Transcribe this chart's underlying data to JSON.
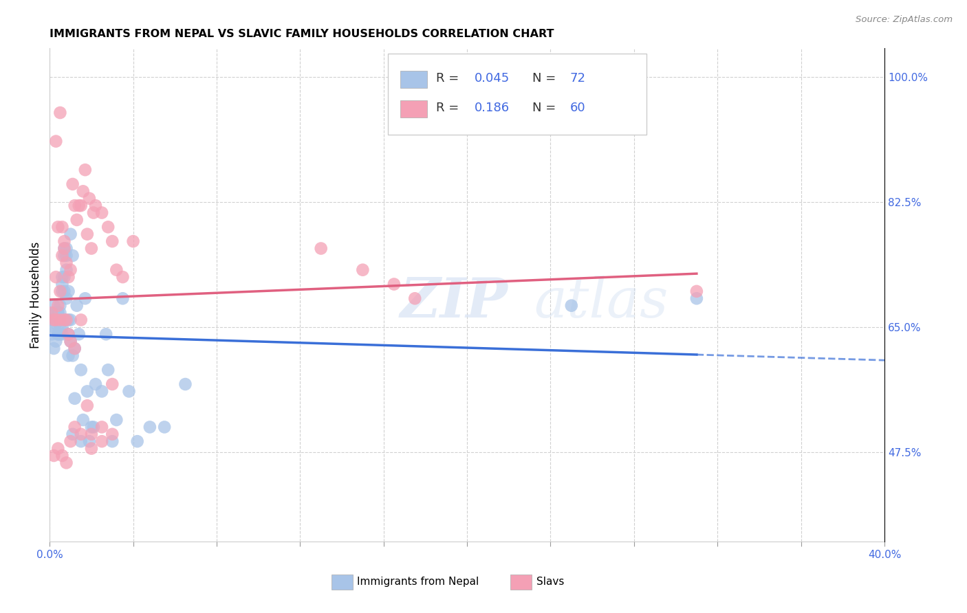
{
  "title": "IMMIGRANTS FROM NEPAL VS SLAVIC FAMILY HOUSEHOLDS CORRELATION CHART",
  "source": "Source: ZipAtlas.com",
  "ylabel": "Family Households",
  "xlim": [
    0.0,
    0.4
  ],
  "ylim": [
    0.35,
    1.04
  ],
  "xticks": [
    0.0,
    0.04,
    0.08,
    0.12,
    0.16,
    0.2,
    0.24,
    0.28,
    0.32,
    0.36,
    0.4
  ],
  "xtick_edge_labels": {
    "0.0": "0.0%",
    "0.40": "40.0%"
  },
  "yticks_right": [
    1.0,
    0.825,
    0.65,
    0.475
  ],
  "ytick_labels_right": [
    "100.0%",
    "82.5%",
    "65.0%",
    "47.5%"
  ],
  "nepal_R": 0.045,
  "nepal_N": 72,
  "slavs_R": 0.186,
  "slavs_N": 60,
  "nepal_color": "#a8c4e8",
  "slavs_color": "#f4a0b5",
  "nepal_line_color": "#3a6fd8",
  "slavs_line_color": "#e06080",
  "watermark_text": "ZIP",
  "watermark_text2": "atlas",
  "nepal_x": [
    0.001,
    0.001,
    0.002,
    0.002,
    0.002,
    0.003,
    0.003,
    0.003,
    0.003,
    0.004,
    0.004,
    0.004,
    0.004,
    0.005,
    0.005,
    0.005,
    0.005,
    0.005,
    0.006,
    0.006,
    0.006,
    0.006,
    0.007,
    0.007,
    0.007,
    0.007,
    0.008,
    0.008,
    0.008,
    0.009,
    0.009,
    0.009,
    0.01,
    0.01,
    0.011,
    0.011,
    0.012,
    0.012,
    0.013,
    0.014,
    0.015,
    0.015,
    0.016,
    0.017,
    0.018,
    0.019,
    0.02,
    0.021,
    0.022,
    0.025,
    0.027,
    0.028,
    0.03,
    0.032,
    0.035,
    0.038,
    0.042,
    0.048,
    0.055,
    0.065,
    0.002,
    0.003,
    0.004,
    0.005,
    0.006,
    0.007,
    0.008,
    0.009,
    0.01,
    0.011,
    0.25,
    0.31
  ],
  "nepal_y": [
    0.66,
    0.64,
    0.67,
    0.65,
    0.68,
    0.66,
    0.67,
    0.655,
    0.66,
    0.67,
    0.665,
    0.64,
    0.67,
    0.66,
    0.65,
    0.68,
    0.66,
    0.67,
    0.7,
    0.72,
    0.65,
    0.71,
    0.7,
    0.72,
    0.75,
    0.76,
    0.73,
    0.75,
    0.76,
    0.64,
    0.61,
    0.66,
    0.66,
    0.78,
    0.5,
    0.61,
    0.62,
    0.55,
    0.68,
    0.64,
    0.59,
    0.49,
    0.52,
    0.69,
    0.56,
    0.49,
    0.51,
    0.51,
    0.57,
    0.56,
    0.64,
    0.59,
    0.49,
    0.52,
    0.69,
    0.56,
    0.49,
    0.51,
    0.51,
    0.57,
    0.62,
    0.63,
    0.64,
    0.64,
    0.64,
    0.66,
    0.69,
    0.7,
    0.63,
    0.75,
    0.68,
    0.69
  ],
  "slavs_x": [
    0.001,
    0.002,
    0.003,
    0.004,
    0.005,
    0.006,
    0.007,
    0.008,
    0.009,
    0.01,
    0.011,
    0.012,
    0.013,
    0.014,
    0.015,
    0.016,
    0.017,
    0.018,
    0.019,
    0.02,
    0.021,
    0.022,
    0.025,
    0.028,
    0.03,
    0.032,
    0.035,
    0.04,
    0.003,
    0.004,
    0.005,
    0.006,
    0.007,
    0.008,
    0.009,
    0.01,
    0.012,
    0.015,
    0.018,
    0.02,
    0.025,
    0.03,
    0.13,
    0.15,
    0.165,
    0.175,
    0.31,
    0.002,
    0.004,
    0.006,
    0.008,
    0.01,
    0.012,
    0.015,
    0.02,
    0.025,
    0.03,
    0.003,
    0.005,
    0.007
  ],
  "slavs_y": [
    0.67,
    0.66,
    0.72,
    0.68,
    0.7,
    0.75,
    0.76,
    0.74,
    0.72,
    0.73,
    0.85,
    0.82,
    0.8,
    0.82,
    0.82,
    0.84,
    0.87,
    0.78,
    0.83,
    0.76,
    0.81,
    0.82,
    0.81,
    0.79,
    0.77,
    0.73,
    0.72,
    0.77,
    0.91,
    0.79,
    0.95,
    0.79,
    0.77,
    0.66,
    0.64,
    0.63,
    0.62,
    0.66,
    0.54,
    0.5,
    0.51,
    0.57,
    0.76,
    0.73,
    0.71,
    0.69,
    0.7,
    0.47,
    0.48,
    0.47,
    0.46,
    0.49,
    0.51,
    0.5,
    0.48,
    0.49,
    0.5,
    0.66,
    0.66,
    0.66
  ]
}
